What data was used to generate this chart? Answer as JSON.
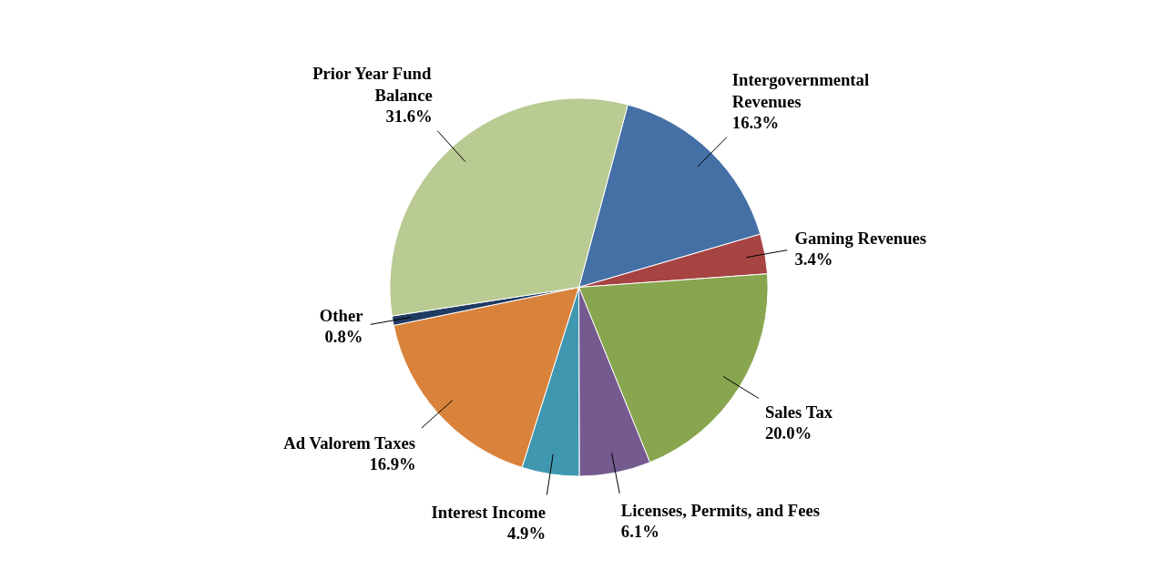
{
  "chart_data": {
    "type": "pie",
    "categories": [
      "Intergovernmental Revenues",
      "Gaming Revenues",
      "Sales Tax",
      "Licenses, Permits, and Fees",
      "Interest Income",
      "Ad Valorem Taxes",
      "Other",
      "Prior Year Fund Balance"
    ],
    "values": [
      16.3,
      3.4,
      20.0,
      6.1,
      4.9,
      16.9,
      0.8,
      31.6
    ],
    "colors": [
      "#4470a6",
      "#a64343",
      "#88a54f",
      "#745a8e",
      "#4098b0",
      "#d9823b",
      "#1f3b63",
      "#b9ca93"
    ],
    "value_labels": [
      "16.3%",
      "3.4%",
      "20.0%",
      "6.1%",
      "4.9%",
      "16.9%",
      "0.8%",
      "31.6%"
    ]
  }
}
